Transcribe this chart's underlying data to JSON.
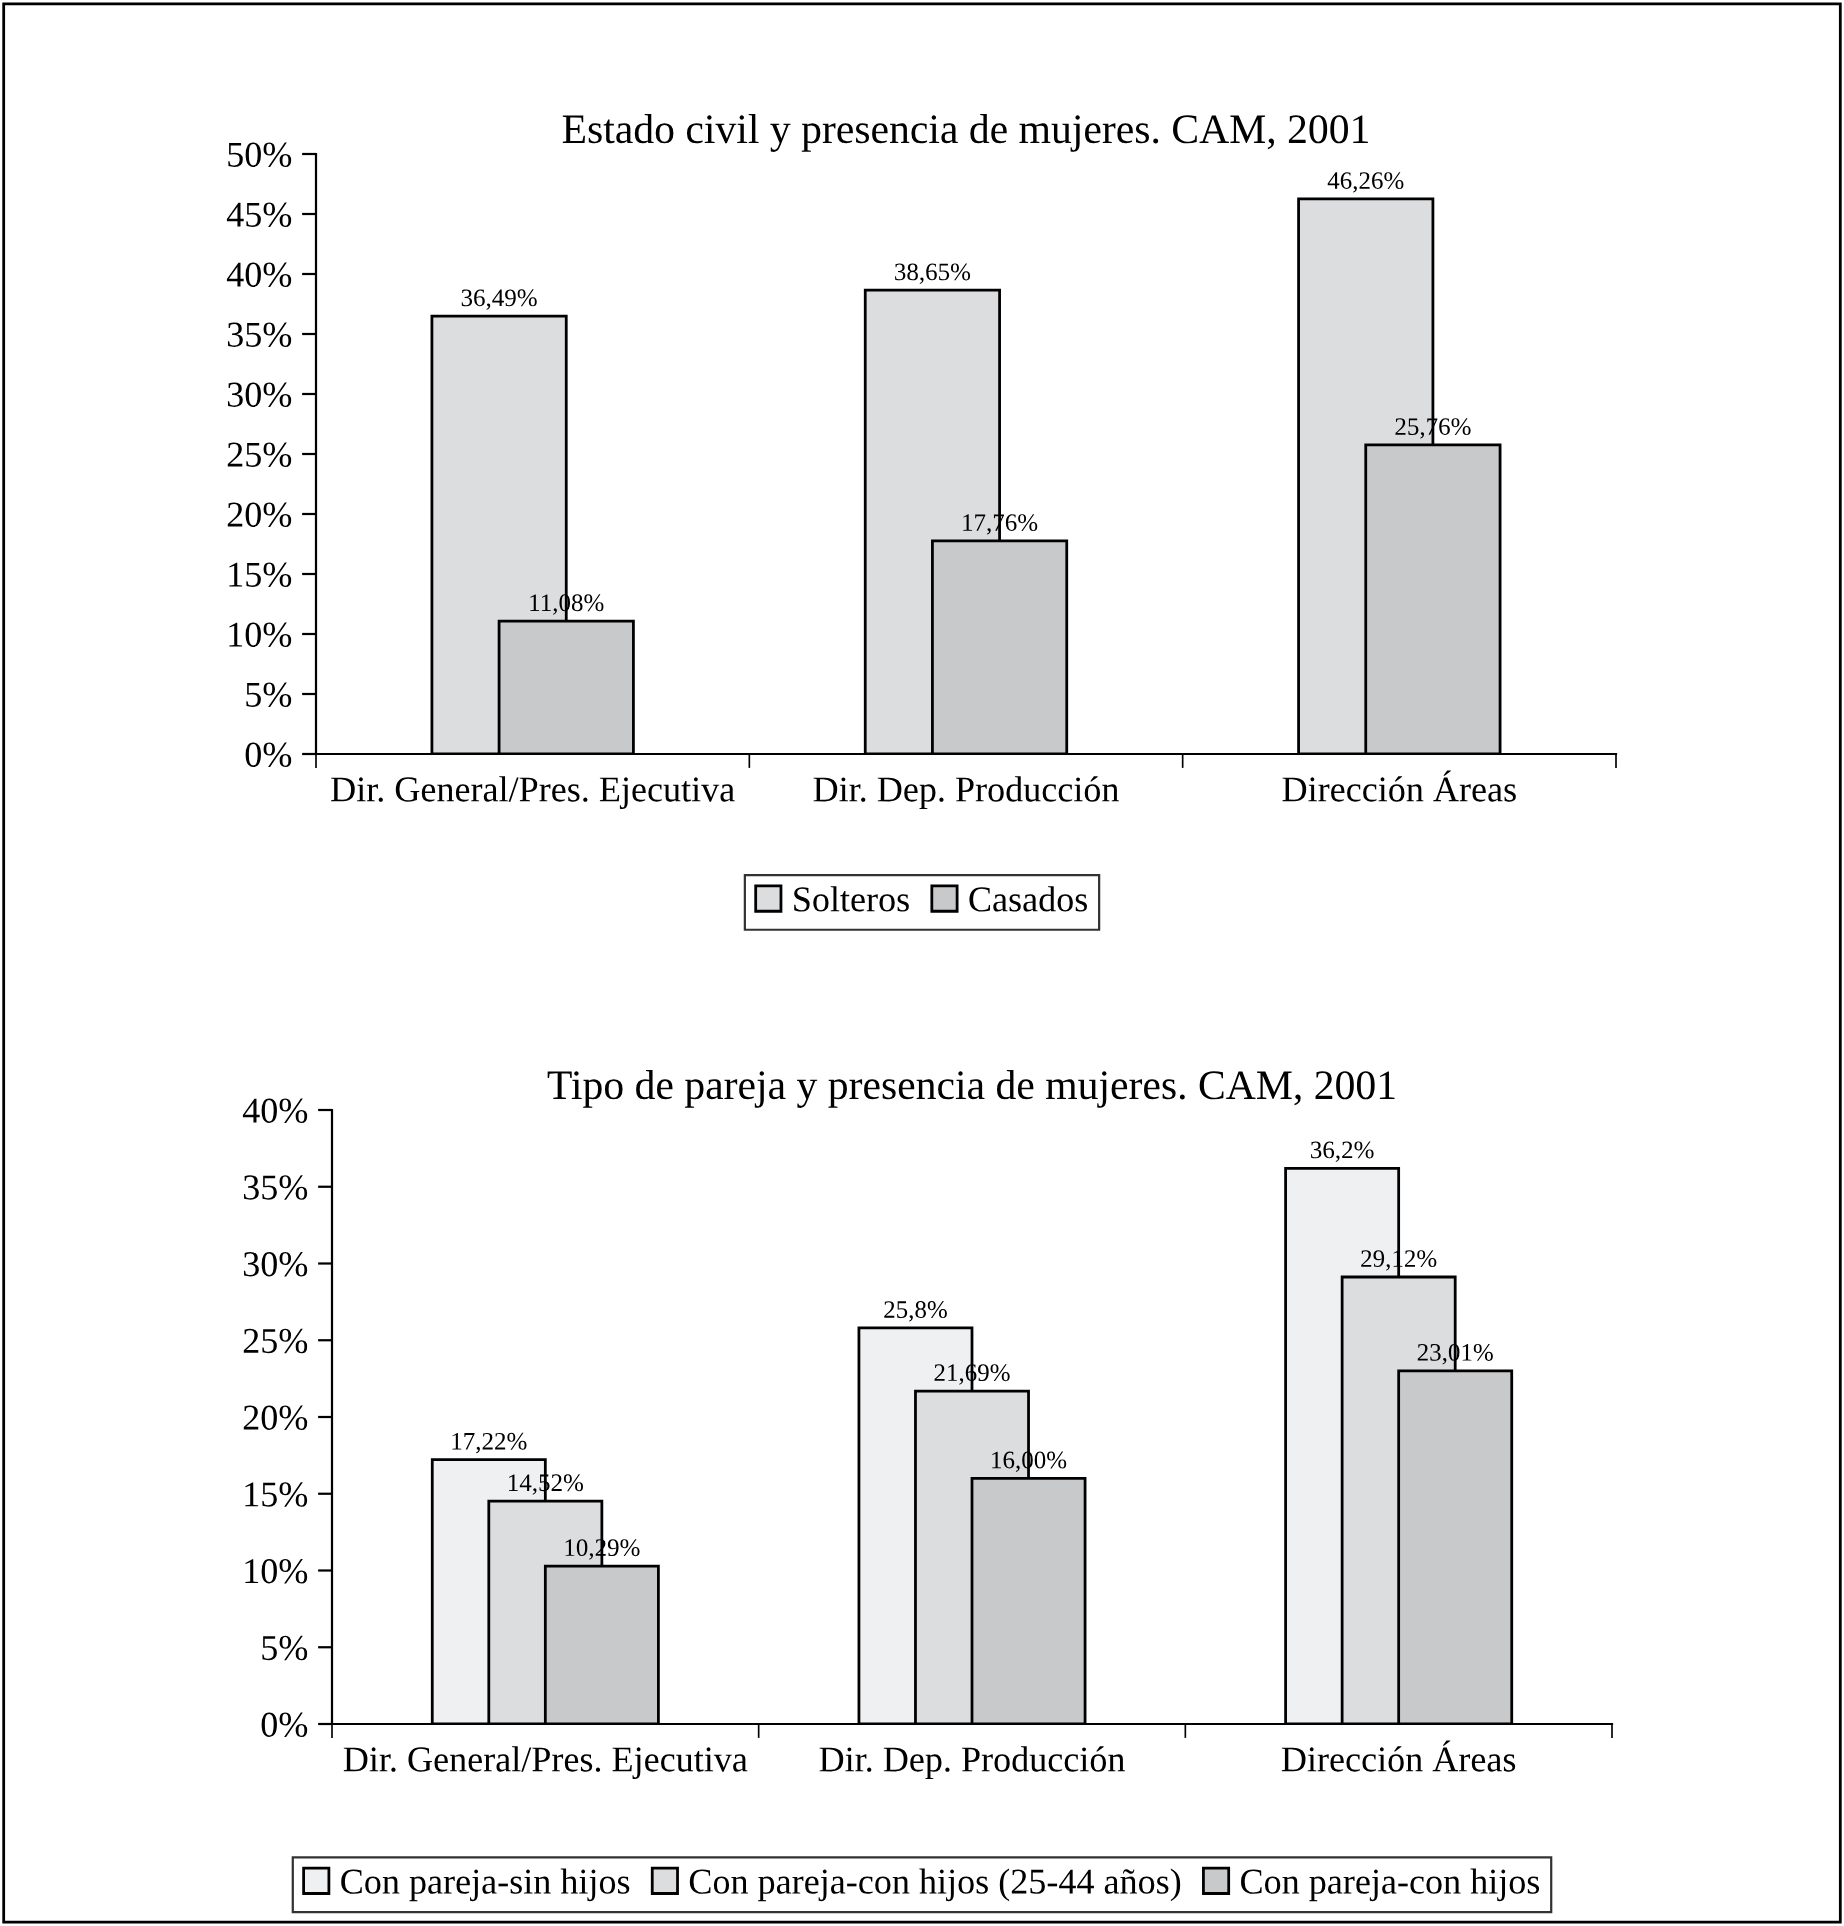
{
  "chart_data": [
    {
      "type": "bar",
      "title": "Estado civil y presencia de mujeres. CAM, 2001",
      "categories": [
        "Dir. General/Pres. Ejecutiva",
        "Dir. Dep. Producción",
        "Dirección Áreas"
      ],
      "series": [
        {
          "name": "Solteros",
          "color": "#dcdddf",
          "values": [
            36.49,
            38.65,
            46.26
          ],
          "value_labels": [
            "36,49%",
            "38,65%",
            "46,26%"
          ]
        },
        {
          "name": "Casados",
          "color": "#c8c9cb",
          "values": [
            11.08,
            17.76,
            25.76
          ],
          "value_labels": [
            "11,08%",
            "17,76%",
            "25,76%"
          ]
        }
      ],
      "ylim": [
        0,
        50
      ],
      "yticks": [
        {
          "value": 0,
          "label": "0%"
        },
        {
          "value": 5,
          "label": "5%"
        },
        {
          "value": 10,
          "label": "10%"
        },
        {
          "value": 15,
          "label": "15%"
        },
        {
          "value": 20,
          "label": "20%"
        },
        {
          "value": 25,
          "label": "25%"
        },
        {
          "value": 30,
          "label": "30%"
        },
        {
          "value": 35,
          "label": "35%"
        },
        {
          "value": 40,
          "label": "40%"
        },
        {
          "value": 45,
          "label": "45%"
        },
        {
          "value": 50,
          "label": "50%"
        }
      ],
      "grid": false,
      "legend": "bottom"
    },
    {
      "type": "bar",
      "title": "Tipo de pareja y presencia de mujeres. CAM, 2001",
      "categories": [
        "Dir. General/Pres. Ejecutiva",
        "Dir. Dep. Producción",
        "Dirección Áreas"
      ],
      "series": [
        {
          "name": "Con pareja-sin hijos",
          "color": "#eff0f2",
          "values": [
            17.22,
            25.8,
            36.2
          ],
          "value_labels": [
            "17,22%",
            "25,8%",
            "36,2%"
          ]
        },
        {
          "name": "Con pareja-con hijos (25-44 años)",
          "color": "#dcdddf",
          "values": [
            14.52,
            21.69,
            29.12
          ],
          "value_labels": [
            "14,52%",
            "21,69%",
            "29,12%"
          ]
        },
        {
          "name": "Con pareja-con hijos",
          "color": "#c8c9cb",
          "values": [
            10.29,
            16.0,
            23.01
          ],
          "value_labels": [
            "10,29%",
            "16,00%",
            "23,01%"
          ]
        }
      ],
      "ylim": [
        0,
        40
      ],
      "yticks": [
        {
          "value": 0,
          "label": "0%"
        },
        {
          "value": 5,
          "label": "5%"
        },
        {
          "value": 10,
          "label": "10%"
        },
        {
          "value": 15,
          "label": "15%"
        },
        {
          "value": 20,
          "label": "20%"
        },
        {
          "value": 25,
          "label": "25%"
        },
        {
          "value": 30,
          "label": "30%"
        },
        {
          "value": 35,
          "label": "35%"
        },
        {
          "value": 40,
          "label": "40%"
        }
      ],
      "grid": false,
      "legend": "bottom"
    }
  ]
}
